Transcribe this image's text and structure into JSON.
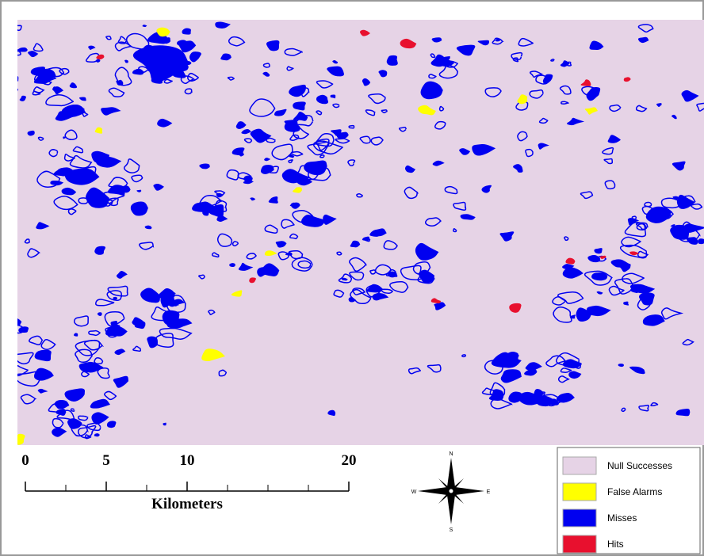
{
  "map": {
    "scale_bar": {
      "ticks": [
        0,
        5,
        10,
        20
      ],
      "unit": "Kilometers"
    },
    "compass": {
      "north": "N",
      "south": "S",
      "east": "E",
      "west": "W"
    },
    "legend": [
      {
        "label": "Null Successes",
        "color": "#e6d3e6"
      },
      {
        "label": "False Alarms",
        "color": "#ffff00"
      },
      {
        "label": "Misses",
        "color": "#0000f0"
      },
      {
        "label": "Hits",
        "color": "#e8102e"
      }
    ]
  }
}
